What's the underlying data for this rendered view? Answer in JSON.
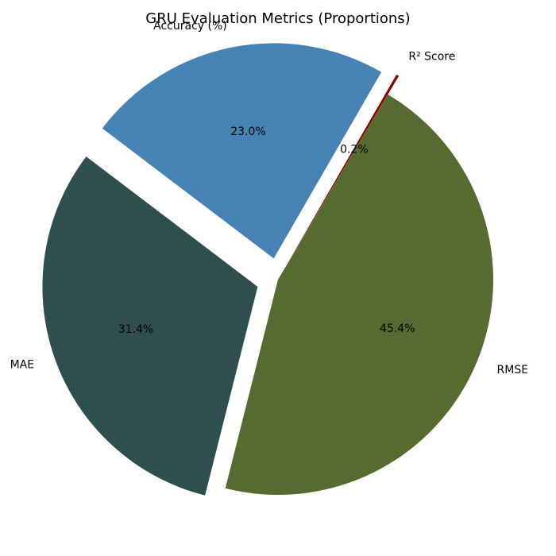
{
  "chart_data": {
    "type": "pie",
    "title": "GRU Evaluation Metrics (Proportions)",
    "slices": [
      {
        "label": "Accuracy (%)",
        "value": 23.0,
        "pct_text": "23.0%",
        "color": "#4682b4",
        "exploded": true
      },
      {
        "label": "MAE",
        "value": 31.4,
        "pct_text": "31.4%",
        "color": "#2f4f4f",
        "exploded": true
      },
      {
        "label": "RMSE",
        "value": 45.4,
        "pct_text": "45.4%",
        "color": "#556b2f",
        "exploded": false
      },
      {
        "label": "R² Score",
        "value": 0.2,
        "pct_text": "0.2%",
        "color": "#8b0000",
        "exploded": true
      }
    ],
    "start_angle_deg": 60,
    "direction": "counterclockwise"
  }
}
